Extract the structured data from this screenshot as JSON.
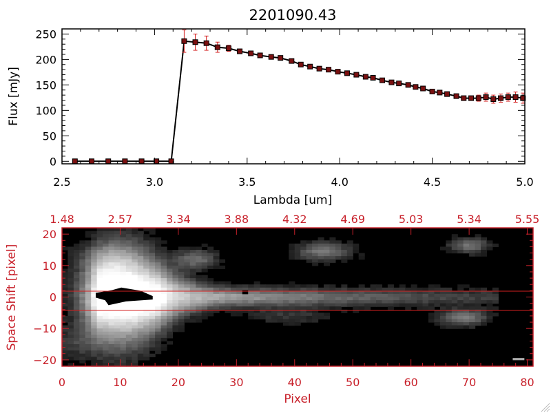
{
  "title": "2201090.43",
  "colors": {
    "axis_black": "#000000",
    "accent_red": "#c8202a",
    "marker_fill": "#7a1010",
    "errorbar": "#d42020",
    "image_bg": "#000000"
  },
  "chart_data": [
    {
      "type": "line",
      "title": "2201090.43",
      "xlabel": "Lambda [um]",
      "ylabel": "Flux [mJy]",
      "xlim": [
        2.5,
        5.0
      ],
      "ylim": [
        -5,
        260
      ],
      "xticks": [
        "2.5",
        "3.0",
        "3.5",
        "4.0",
        "4.5",
        "5.0"
      ],
      "yticks": [
        "0",
        "50",
        "100",
        "150",
        "200",
        "250"
      ],
      "xtick_values": [
        2.5,
        3.0,
        3.5,
        4.0,
        4.5,
        5.0
      ],
      "ytick_values": [
        0,
        50,
        100,
        150,
        200,
        250
      ],
      "grid": false,
      "series": [
        {
          "x": [
            2.57,
            2.66,
            2.75,
            2.84,
            2.93,
            3.01,
            3.09,
            3.16,
            3.22,
            3.28,
            3.34,
            3.4,
            3.46,
            3.52,
            3.57,
            3.63,
            3.68,
            3.74,
            3.79,
            3.84,
            3.89,
            3.94,
            3.99,
            4.04,
            4.09,
            4.14,
            4.18,
            4.23,
            4.28,
            4.32,
            4.37,
            4.41,
            4.45,
            4.5,
            4.54,
            4.58,
            4.63,
            4.67,
            4.71,
            4.75,
            4.79,
            4.83,
            4.87,
            4.91,
            4.95,
            4.99
          ],
          "y": [
            0,
            0,
            0,
            0,
            0,
            0,
            0,
            236,
            234,
            232,
            224,
            222,
            216,
            212,
            208,
            205,
            203,
            197,
            190,
            186,
            182,
            180,
            176,
            173,
            170,
            166,
            164,
            159,
            155,
            153,
            150,
            146,
            143,
            137,
            135,
            132,
            128,
            124,
            124,
            124,
            126,
            122,
            124,
            126,
            126,
            124
          ],
          "yerr": [
            0,
            0,
            0,
            0,
            0,
            0,
            0,
            22,
            16,
            14,
            10,
            6,
            4,
            4,
            3,
            3,
            3,
            3,
            3,
            3,
            3,
            3,
            3,
            3,
            3,
            3,
            3,
            3,
            3,
            3,
            3,
            3,
            3,
            3,
            3,
            3,
            3,
            4,
            4,
            6,
            8,
            8,
            8,
            8,
            10,
            10
          ]
        }
      ]
    },
    {
      "type": "heatmap",
      "xlabel": "Pixel",
      "ylabel": "Space Shift [pixel]",
      "xlim": [
        0,
        81
      ],
      "ylim": [
        -22,
        22
      ],
      "xticks": [
        "0",
        "10",
        "20",
        "30",
        "40",
        "50",
        "60",
        "70",
        "80"
      ],
      "xtick_values": [
        0,
        10,
        20,
        30,
        40,
        50,
        60,
        70,
        80
      ],
      "yticks": [
        "−20",
        "−10",
        "0",
        "10",
        "20"
      ],
      "ytick_values": [
        -20,
        -10,
        0,
        10,
        20
      ],
      "top_axis_labels": [
        "1.48",
        "2.57",
        "3.34",
        "3.88",
        "4.32",
        "4.69",
        "5.03",
        "5.34",
        "5.55"
      ],
      "extraction_aperture": [
        -3,
        3
      ],
      "colormap": "grayscale"
    }
  ]
}
